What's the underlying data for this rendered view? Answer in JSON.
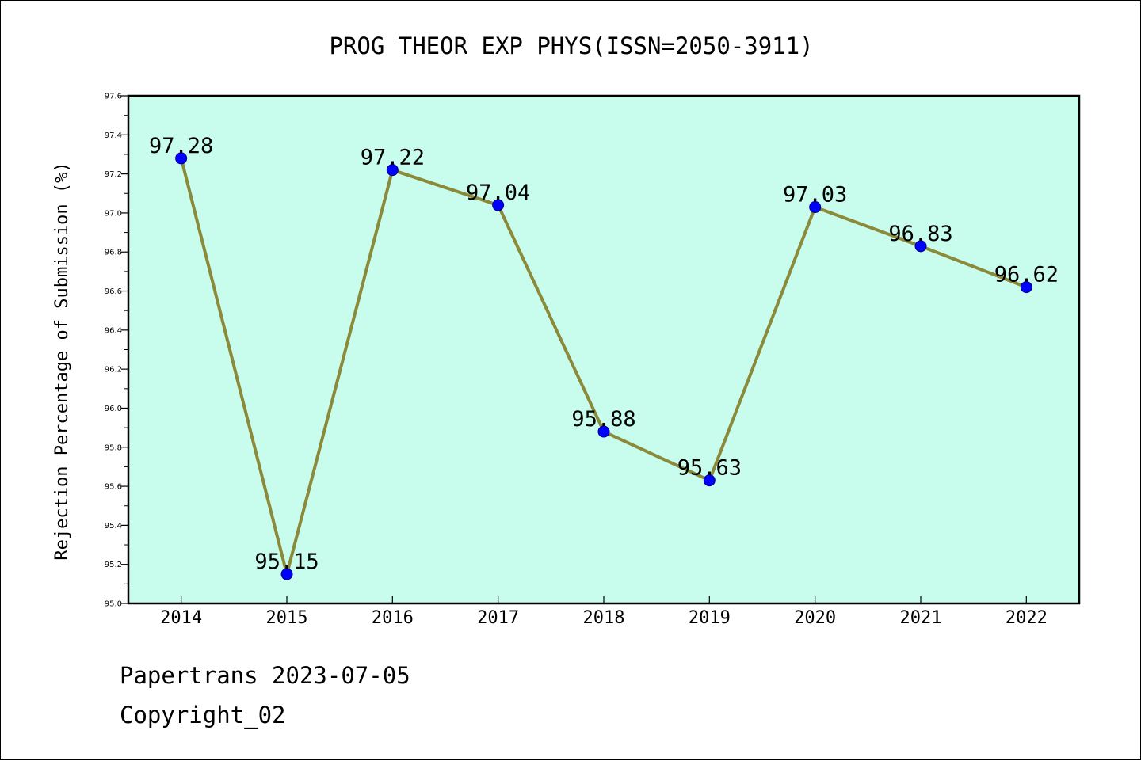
{
  "chart_data": {
    "type": "line",
    "title": "PROG THEOR EXP PHYS(ISSN=2050-3911)",
    "xlabel": "",
    "ylabel": "Rejection Percentage of Submission (%)",
    "categories": [
      "2014",
      "2015",
      "2016",
      "2017",
      "2018",
      "2019",
      "2020",
      "2021",
      "2022"
    ],
    "series": [
      {
        "values": [
          97.28,
          95.15,
          97.22,
          97.04,
          95.88,
          95.63,
          97.03,
          96.83,
          96.62
        ],
        "data_labels": [
          "97.28",
          "95.15",
          "97.22",
          "97.04",
          "95.88",
          "95.63",
          "97.03",
          "96.83",
          "96.62"
        ]
      }
    ],
    "ylim": [
      95.0,
      97.6
    ],
    "yticks": [
      "95.0",
      "95.2",
      "95.4",
      "95.6",
      "95.8",
      "96.0",
      "96.2",
      "96.4",
      "96.6",
      "96.8",
      "97.0",
      "97.2",
      "97.4",
      "97.6"
    ],
    "grid": false,
    "legend": "none",
    "colors": {
      "plot_background": "#c8fcec",
      "line": "#8b8a3a",
      "marker": "#0000ff",
      "axis": "#000000"
    }
  },
  "footer": {
    "source": "Papertrans 2023-07-05",
    "copyright": "Copyright_02"
  }
}
